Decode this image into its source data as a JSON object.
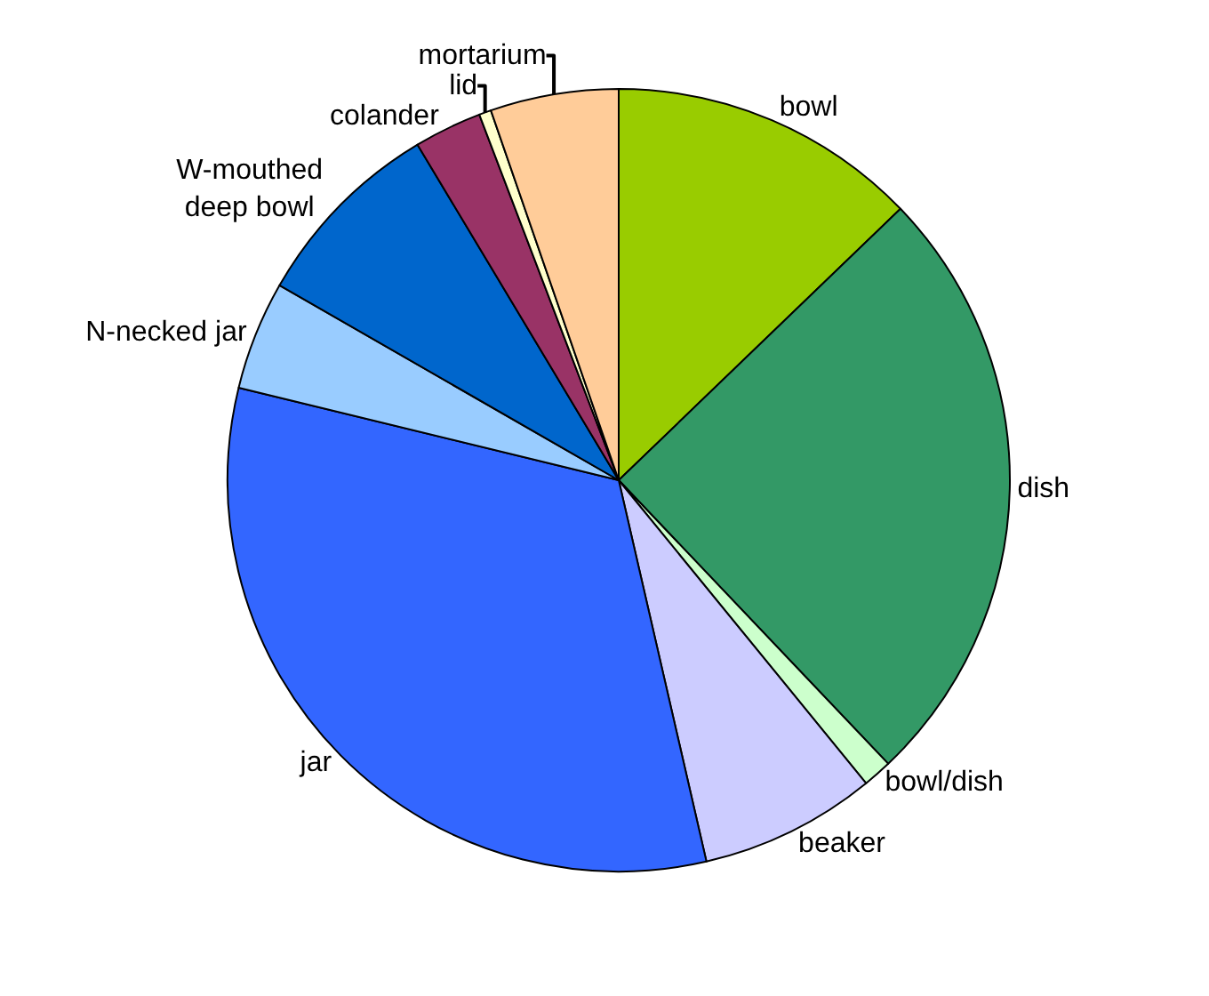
{
  "chart_data": {
    "type": "pie",
    "categories": [
      "bowl",
      "dish",
      "bowl/dish",
      "beaker",
      "jar",
      "N-necked jar",
      "W-mouthed\ndeep bowl",
      "colander",
      "lid",
      "mortarium"
    ],
    "values": [
      12.8,
      25.1,
      1.2,
      7.3,
      32.4,
      4.5,
      8.1,
      2.8,
      0.5,
      5.3
    ],
    "colors": [
      "#99cc00",
      "#339966",
      "#ccffcc",
      "#ccccff",
      "#3366ff",
      "#99ccff",
      "#0066cc",
      "#993366",
      "#ffffcc",
      "#ffcc99"
    ],
    "legend": false
  }
}
